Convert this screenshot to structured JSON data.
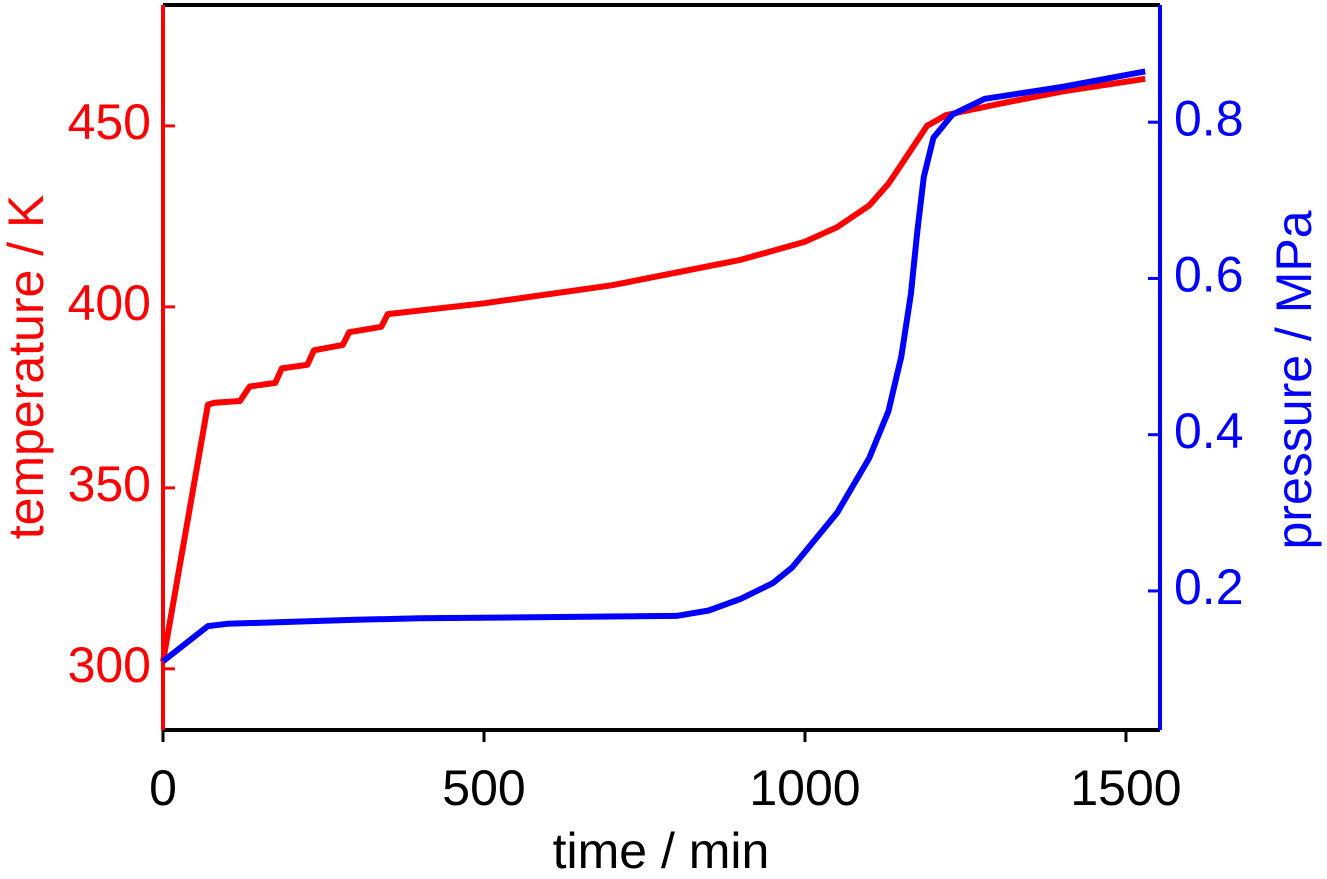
{
  "chart_data": {
    "type": "line",
    "x_label": "time / min",
    "y_label": "temperature / K",
    "y2_label": "pressure / MPa",
    "xlim": [
      0,
      1553
    ],
    "xticks": [
      0,
      500,
      1000,
      1500
    ],
    "ylim": [
      283.1,
      483.4
    ],
    "yticks": [
      300,
      350,
      400,
      450
    ],
    "y2lim": [
      0.022,
      0.95
    ],
    "y2ticks": [
      0.2,
      0.4,
      0.6,
      0.8
    ],
    "y_color": "#ff0000",
    "y2_color": "#0000ff",
    "series": [
      {
        "name": "temperature",
        "color": "#ff0000",
        "x": [
          0,
          70,
          80,
          120,
          135,
          175,
          185,
          225,
          235,
          280,
          290,
          340,
          350,
          500,
          700,
          800,
          900,
          1000,
          1050,
          1100,
          1130,
          1160,
          1190,
          1220,
          1300,
          1400,
          1530
        ],
        "values": [
          302,
          373,
          373.5,
          374,
          378,
          379,
          383,
          384,
          388,
          389.5,
          393,
          394.5,
          398,
          401,
          406,
          409.5,
          413,
          418,
          422,
          428,
          434,
          442,
          450,
          453,
          456,
          459.5,
          463
        ]
      },
      {
        "name": "pressure",
        "color": "#0000ff",
        "axis": "y2",
        "x": [
          0,
          70,
          100,
          300,
          400,
          800,
          850,
          900,
          950,
          980,
          1000,
          1050,
          1100,
          1130,
          1150,
          1165,
          1175,
          1185,
          1200,
          1230,
          1280,
          1400,
          1530
        ],
        "values": [
          0.11,
          0.155,
          0.158,
          0.163,
          0.165,
          0.168,
          0.175,
          0.19,
          0.21,
          0.23,
          0.25,
          0.3,
          0.37,
          0.43,
          0.5,
          0.58,
          0.66,
          0.73,
          0.78,
          0.81,
          0.83,
          0.845,
          0.865
        ]
      }
    ]
  }
}
